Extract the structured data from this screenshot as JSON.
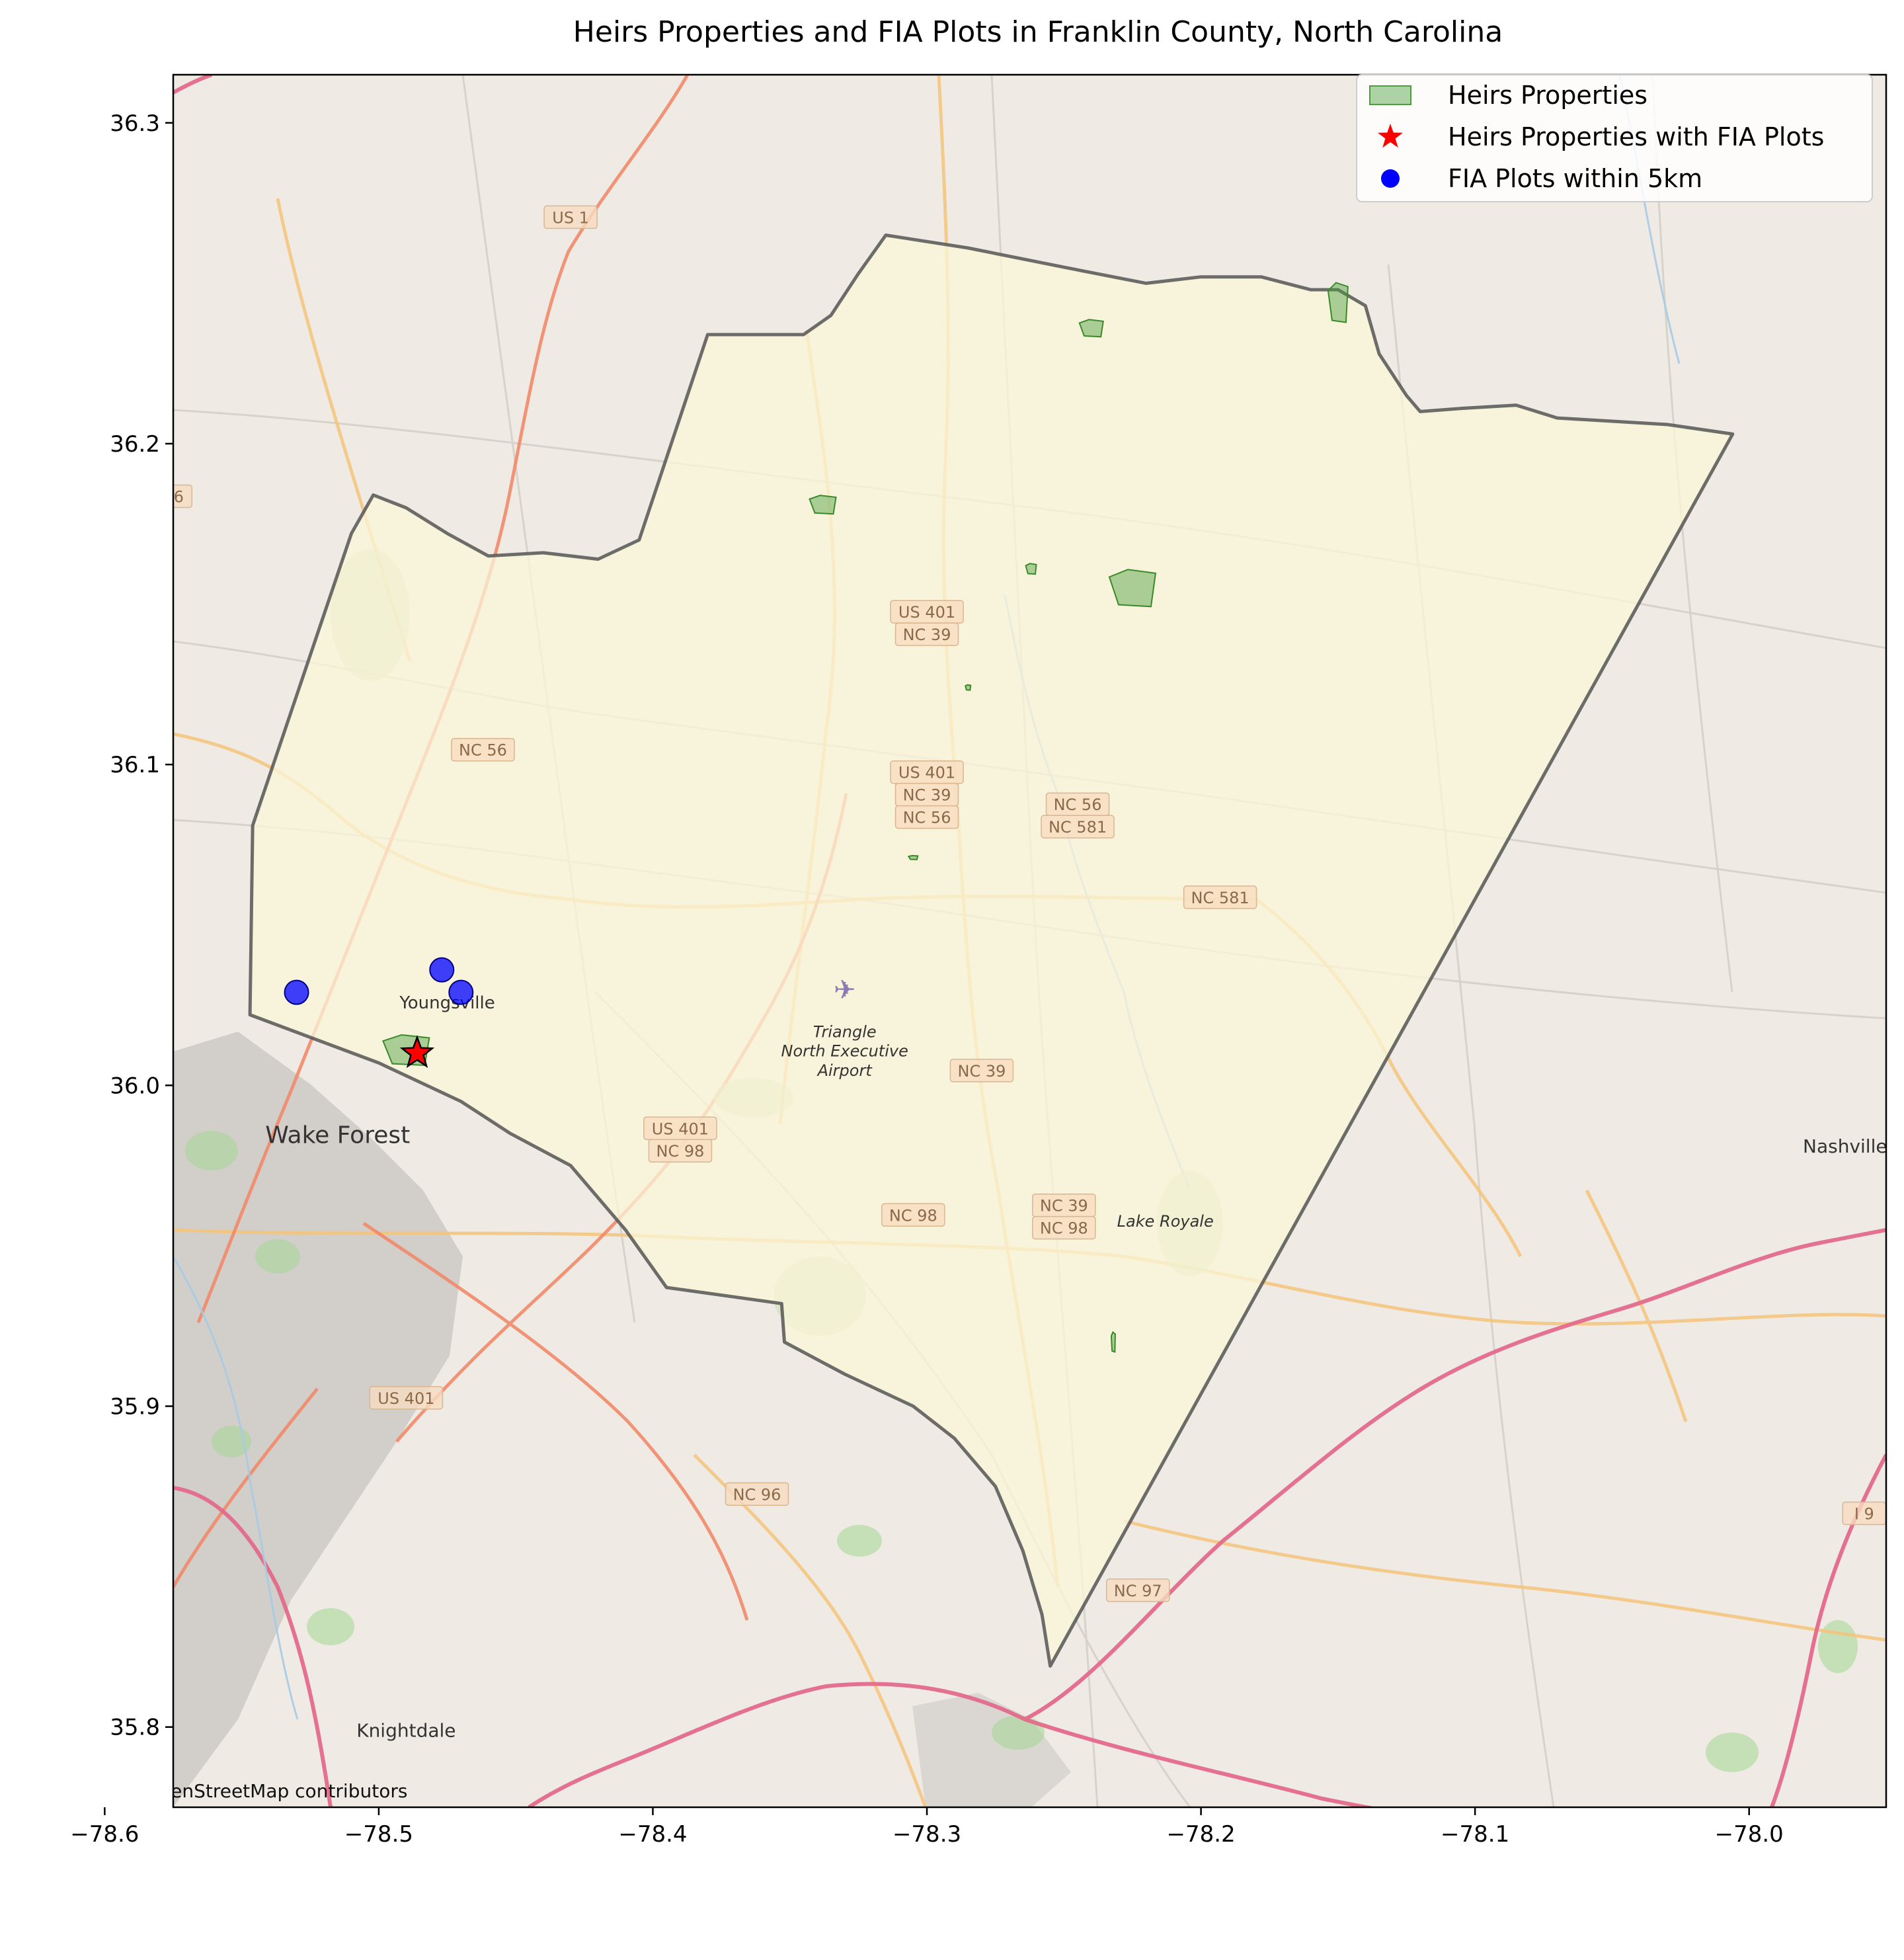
{
  "chart_data": {
    "type": "scatter",
    "title": "Heirs Properties and FIA Plots in Franklin County, North Carolina",
    "xlim": [
      -78.575,
      -77.95
    ],
    "ylim": [
      35.775,
      36.315
    ],
    "x_ticks": [
      -78.6,
      -78.5,
      -78.4,
      -78.3,
      -78.2,
      -78.1,
      -78.0
    ],
    "x_tick_labels": [
      "−78.6",
      "−78.5",
      "−78.4",
      "−78.3",
      "−78.2",
      "−78.1",
      "−78.0"
    ],
    "y_ticks": [
      35.8,
      35.9,
      36.0,
      36.1,
      36.2,
      36.3
    ],
    "y_tick_labels": [
      "35.8",
      "35.9",
      "36.0",
      "36.1",
      "36.2",
      "36.3"
    ],
    "legend_position": "top-right",
    "legend": [
      {
        "label": "Heirs Properties",
        "color": "#4a9e3c",
        "marker": "patch"
      },
      {
        "label": "Heirs Properties with FIA Plots",
        "color": "#ff0000",
        "marker": "star"
      },
      {
        "label": "FIA Plots within 5km",
        "color": "#0000ff",
        "marker": "circle"
      }
    ],
    "county_boundary": [
      [
        -78.255,
        35.819
      ],
      [
        -78.258,
        35.835
      ],
      [
        -78.265,
        35.855
      ],
      [
        -78.275,
        35.875
      ],
      [
        -78.29,
        35.89
      ],
      [
        -78.305,
        35.9
      ],
      [
        -78.33,
        35.91
      ],
      [
        -78.352,
        35.92
      ],
      [
        -78.353,
        35.932
      ],
      [
        -78.395,
        35.937
      ],
      [
        -78.41,
        35.955
      ],
      [
        -78.43,
        35.975
      ],
      [
        -78.452,
        35.985
      ],
      [
        -78.47,
        35.995
      ],
      [
        -78.5,
        36.007
      ],
      [
        -78.547,
        36.022
      ],
      [
        -78.546,
        36.081
      ],
      [
        -78.51,
        36.172
      ],
      [
        -78.502,
        36.184
      ],
      [
        -78.49,
        36.18
      ],
      [
        -78.475,
        36.172
      ],
      [
        -78.46,
        36.165
      ],
      [
        -78.44,
        36.166
      ],
      [
        -78.42,
        36.164
      ],
      [
        -78.405,
        36.17
      ],
      [
        -78.38,
        36.234
      ],
      [
        -78.36,
        36.234
      ],
      [
        -78.345,
        36.234
      ],
      [
        -78.335,
        36.24
      ],
      [
        -78.325,
        36.253
      ],
      [
        -78.315,
        36.265
      ],
      [
        -78.285,
        36.261
      ],
      [
        -78.25,
        36.255
      ],
      [
        -78.22,
        36.25
      ],
      [
        -78.2,
        36.252
      ],
      [
        -78.178,
        36.252
      ],
      [
        -78.16,
        36.248
      ],
      [
        -78.15,
        36.248
      ],
      [
        -78.14,
        36.243
      ],
      [
        -78.135,
        36.228
      ],
      [
        -78.125,
        36.215
      ],
      [
        -78.12,
        36.21
      ],
      [
        -78.105,
        36.211
      ],
      [
        -78.085,
        36.212
      ],
      [
        -78.07,
        36.208
      ],
      [
        -78.05,
        36.207
      ],
      [
        -78.03,
        36.206
      ],
      [
        -78.006,
        36.203
      ],
      [
        -78.255,
        35.819
      ]
    ],
    "heirs_properties": [
      {
        "lon": -78.24,
        "lat": 36.236
      },
      {
        "lon": -78.15,
        "lat": 36.244
      },
      {
        "lon": -78.338,
        "lat": 36.181
      },
      {
        "lon": -78.225,
        "lat": 36.155
      },
      {
        "lon": -78.262,
        "lat": 36.161
      },
      {
        "lon": -78.285,
        "lat": 36.124
      },
      {
        "lon": -78.232,
        "lat": 35.92
      },
      {
        "lon": -78.305,
        "lat": 36.071
      },
      {
        "lon": -78.49,
        "lat": 36.011
      }
    ],
    "heirs_with_fia": [
      {
        "lon": -78.486,
        "lat": 36.01
      }
    ],
    "fia_plots_5km": [
      {
        "lon": -78.53,
        "lat": 36.029
      },
      {
        "lon": -78.477,
        "lat": 36.036
      },
      {
        "lon": -78.47,
        "lat": 36.029
      }
    ],
    "basemap": {
      "road_labels": [
        {
          "text": "US 1",
          "lon": -78.43,
          "lat": 36.27
        },
        {
          "text": "NC 56",
          "lon": -78.462,
          "lat": 36.104
        },
        {
          "text": "US 401",
          "lon": -78.3,
          "lat": 36.147
        },
        {
          "text": "NC 39",
          "lon": -78.3,
          "lat": 36.14
        },
        {
          "text": "US 401",
          "lon": -78.3,
          "lat": 36.097
        },
        {
          "text": "NC 39",
          "lon": -78.3,
          "lat": 36.09
        },
        {
          "text": "NC 56",
          "lon": -78.3,
          "lat": 36.083
        },
        {
          "text": "NC 56",
          "lon": -78.245,
          "lat": 36.087
        },
        {
          "text": "NC 581",
          "lon": -78.245,
          "lat": 36.08
        },
        {
          "text": "NC 581",
          "lon": -78.193,
          "lat": 36.058
        },
        {
          "text": "NC 39",
          "lon": -78.28,
          "lat": 36.004
        },
        {
          "text": "US 401",
          "lon": -78.39,
          "lat": 35.986
        },
        {
          "text": "NC 98",
          "lon": -78.39,
          "lat": 35.979
        },
        {
          "text": "NC 98",
          "lon": -78.305,
          "lat": 35.959
        },
        {
          "text": "NC 39",
          "lon": -78.25,
          "lat": 35.962
        },
        {
          "text": "NC 98",
          "lon": -78.25,
          "lat": 35.955
        },
        {
          "text": "US 401",
          "lon": -78.49,
          "lat": 35.902
        },
        {
          "text": "NC 96",
          "lon": -78.362,
          "lat": 35.872
        },
        {
          "text": "NC 97",
          "lon": -78.223,
          "lat": 35.842
        },
        {
          "text": "I 9",
          "lon": -77.958,
          "lat": 35.866
        },
        {
          "text": "6",
          "lon": -78.573,
          "lat": 36.183
        }
      ],
      "place_labels": [
        {
          "text": "Youngsville",
          "lon": -78.475,
          "lat": 36.024,
          "size": 26
        },
        {
          "text": "Wake Forest",
          "lon": -78.515,
          "lat": 35.982,
          "size": 36
        },
        {
          "text": "Triangle",
          "lon": -78.33,
          "lat": 36.015,
          "size": 24
        },
        {
          "text": "North Executive",
          "lon": -78.33,
          "lat": 36.009,
          "size": 24
        },
        {
          "text": "Airport",
          "lon": -78.33,
          "lat": 36.003,
          "size": 24
        },
        {
          "text": "Lake Royale",
          "lon": -78.213,
          "lat": 35.956,
          "size": 24
        },
        {
          "text": "Nashville",
          "lon": -77.965,
          "lat": 35.979,
          "size": 28
        },
        {
          "text": "Knightdale",
          "lon": -78.49,
          "lat": 35.797,
          "size": 28
        }
      ]
    },
    "attribution": "(C) OpenStreetMap contributors"
  }
}
